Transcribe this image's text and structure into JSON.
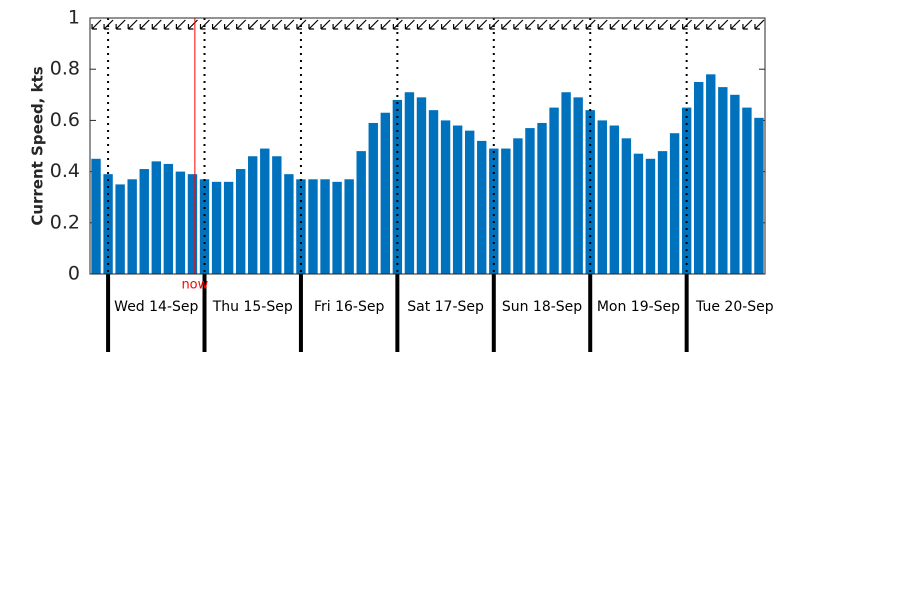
{
  "chart_data": {
    "type": "bar",
    "ylabel": "Current Speed, kts",
    "color": "#0072bd",
    "x": [
      0,
      1,
      2,
      3,
      4,
      5,
      6,
      7,
      8,
      9,
      10,
      11,
      12,
      13,
      14,
      15,
      16,
      17,
      18,
      19,
      20,
      21,
      22,
      23,
      24,
      25,
      26,
      27,
      28,
      29,
      30,
      31,
      32,
      33,
      34,
      35,
      36,
      37,
      38,
      39,
      40,
      41,
      42,
      43,
      44,
      45,
      46,
      47,
      48,
      49,
      50,
      51,
      52,
      53,
      54,
      55
    ],
    "values": [
      0.45,
      0.39,
      0.35,
      0.37,
      0.41,
      0.44,
      0.43,
      0.4,
      0.39,
      0.37,
      0.36,
      0.36,
      0.41,
      0.46,
      0.49,
      0.46,
      0.39,
      0.37,
      0.37,
      0.37,
      0.36,
      0.37,
      0.48,
      0.59,
      0.63,
      0.68,
      0.71,
      0.69,
      0.64,
      0.6,
      0.58,
      0.56,
      0.52,
      0.49,
      0.49,
      0.53,
      0.57,
      0.59,
      0.65,
      0.71,
      0.69,
      0.64,
      0.6,
      0.58,
      0.53,
      0.47,
      0.45,
      0.48,
      0.55,
      0.65,
      0.75,
      0.78,
      0.73,
      0.7,
      0.65,
      0.61
    ],
    "xlim": [
      -0.5,
      55.5
    ],
    "ylim": [
      0,
      1
    ],
    "yticks": [
      0,
      0.2,
      0.4,
      0.6,
      0.8,
      1
    ],
    "day_boundaries": [
      1,
      9,
      17,
      25,
      33,
      41,
      49
    ],
    "day_labels": [
      {
        "value": 5,
        "label": "Wed 14-Sep"
      },
      {
        "value": 13,
        "label": "Thu 15-Sep"
      },
      {
        "value": 21,
        "label": "Fri 16-Sep"
      },
      {
        "value": 29,
        "label": "Sat 17-Sep"
      },
      {
        "value": 37,
        "label": "Sun 18-Sep"
      },
      {
        "value": 45,
        "label": "Mon 19-Sep"
      },
      {
        "value": 53,
        "label": "Tue 20-Sep"
      }
    ],
    "now": {
      "x": 8.2,
      "label": "now",
      "color": "#ff0000"
    }
  }
}
